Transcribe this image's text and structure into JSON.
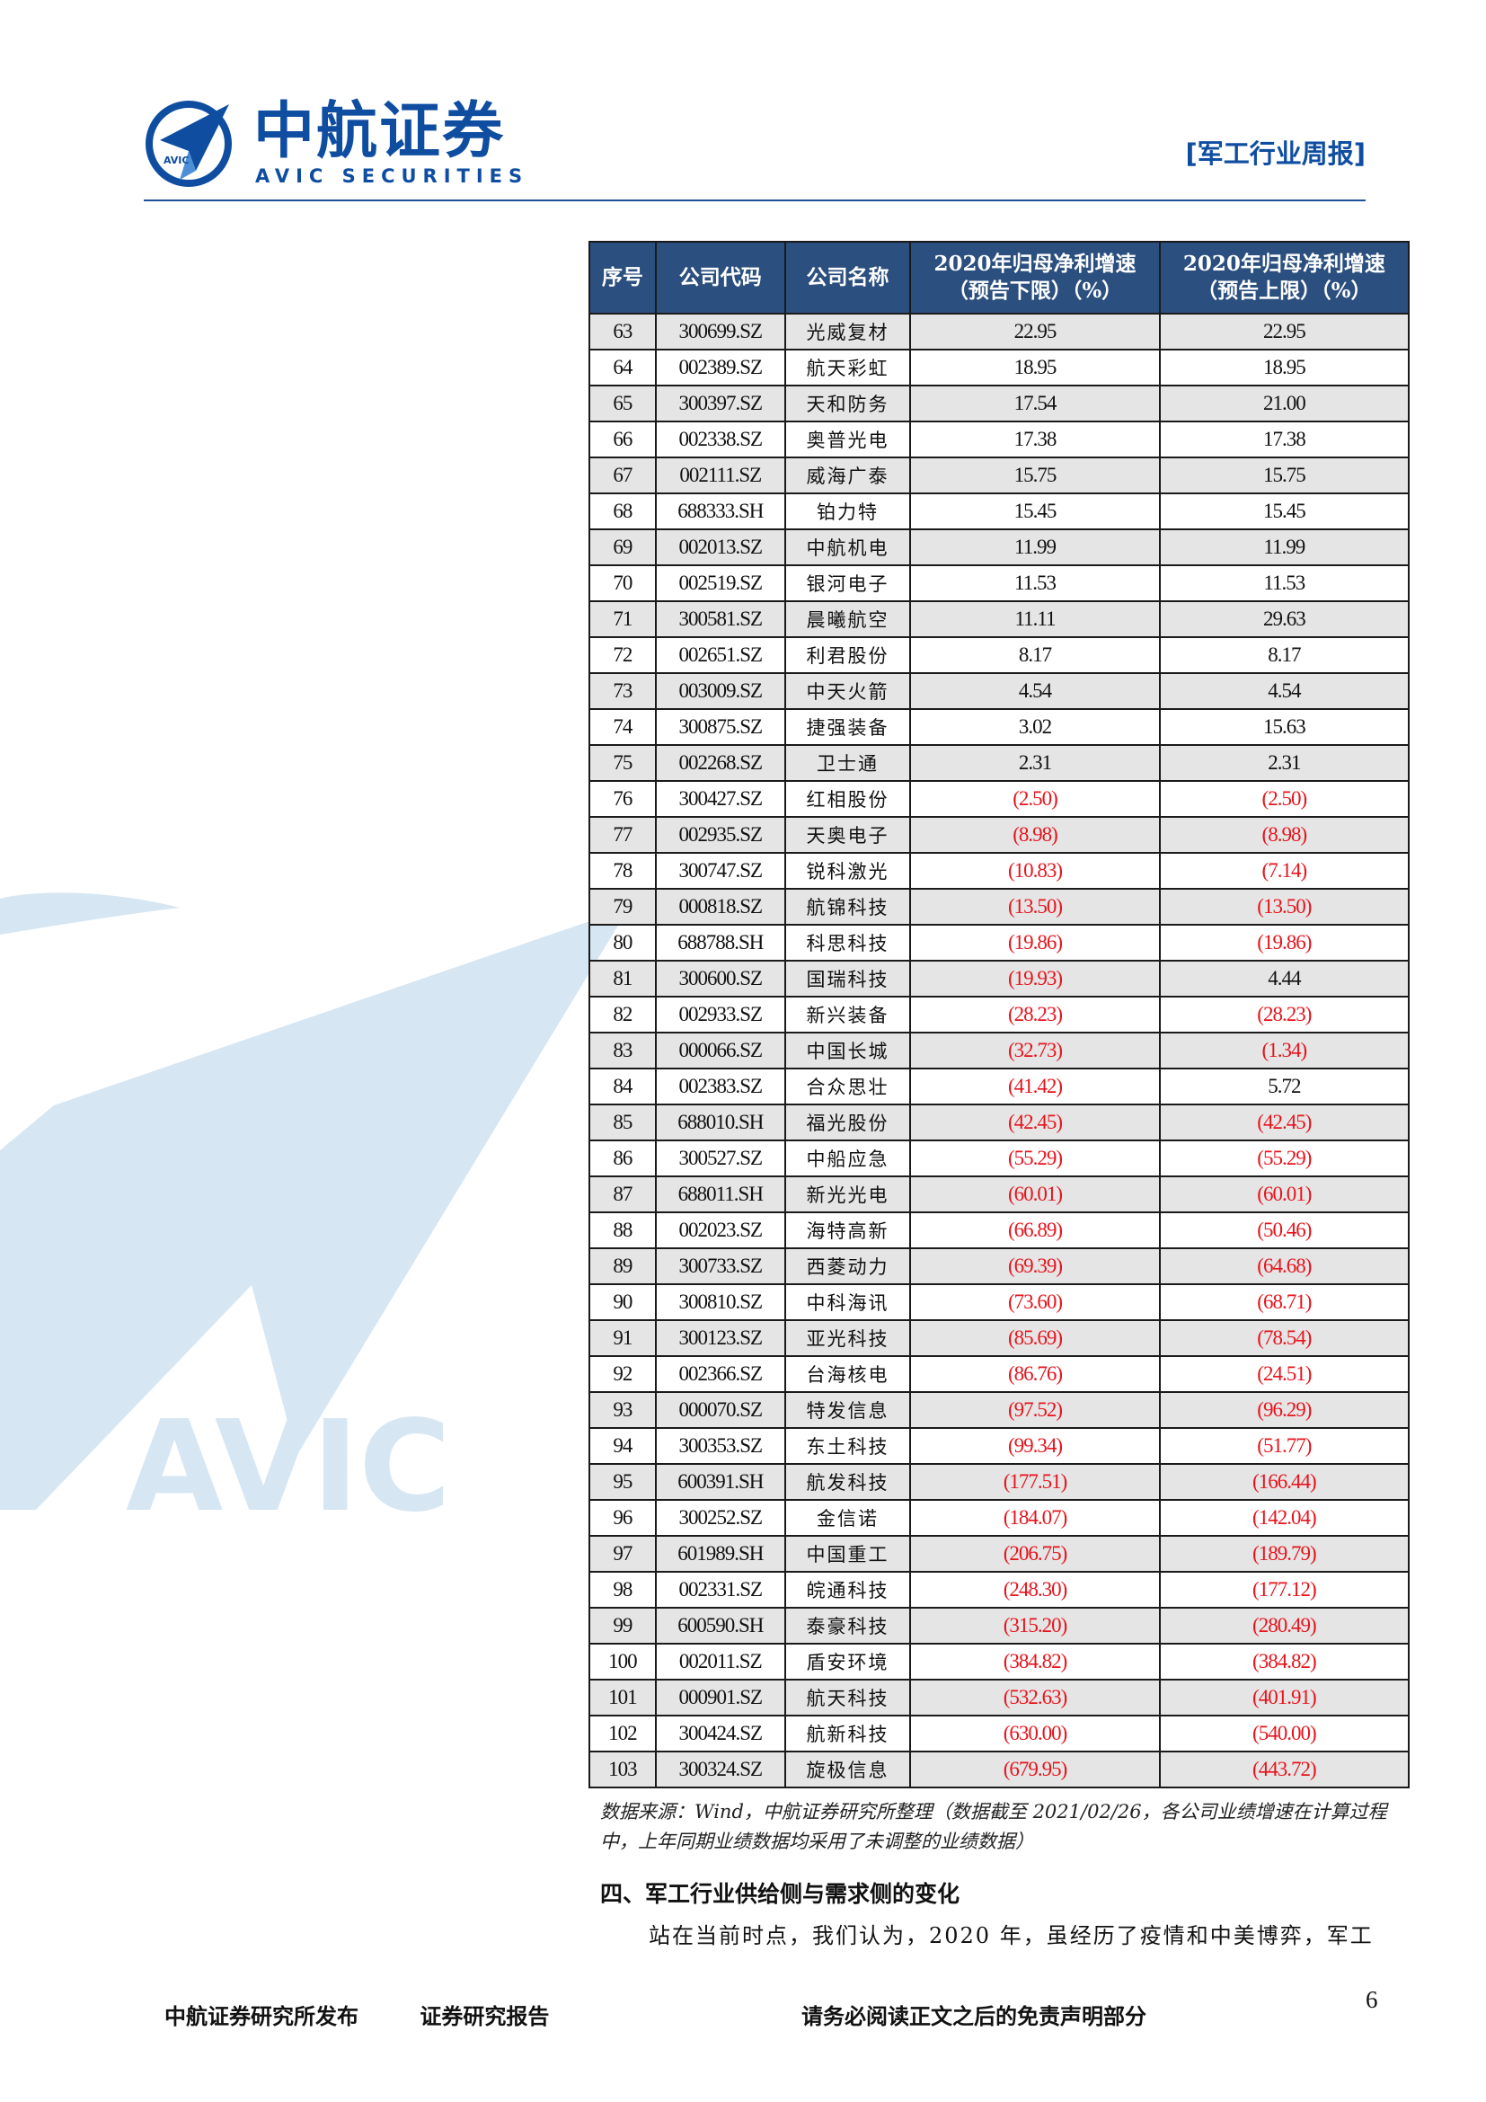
{
  "header": {
    "logo_cn": "中航证券",
    "logo_en": "AVIC SECURITIES",
    "logo_badge": "AVIC",
    "report_tag": "[军工行业周报]"
  },
  "watermark_text": "AVIC",
  "table": {
    "columns": [
      "序号",
      "公司代码",
      "公司名称",
      "2020年归母净利增速（预告下限）（%）",
      "2020年归母净利增速（预告上限）（%）"
    ],
    "rows": [
      [
        "63",
        "300699.SZ",
        "光威复材",
        "22.95",
        "22.95"
      ],
      [
        "64",
        "002389.SZ",
        "航天彩虹",
        "18.95",
        "18.95"
      ],
      [
        "65",
        "300397.SZ",
        "天和防务",
        "17.54",
        "21.00"
      ],
      [
        "66",
        "002338.SZ",
        "奥普光电",
        "17.38",
        "17.38"
      ],
      [
        "67",
        "002111.SZ",
        "威海广泰",
        "15.75",
        "15.75"
      ],
      [
        "68",
        "688333.SH",
        "铂力特",
        "15.45",
        "15.45"
      ],
      [
        "69",
        "002013.SZ",
        "中航机电",
        "11.99",
        "11.99"
      ],
      [
        "70",
        "002519.SZ",
        "银河电子",
        "11.53",
        "11.53"
      ],
      [
        "71",
        "300581.SZ",
        "晨曦航空",
        "11.11",
        "29.63"
      ],
      [
        "72",
        "002651.SZ",
        "利君股份",
        "8.17",
        "8.17"
      ],
      [
        "73",
        "003009.SZ",
        "中天火箭",
        "4.54",
        "4.54"
      ],
      [
        "74",
        "300875.SZ",
        "捷强装备",
        "3.02",
        "15.63"
      ],
      [
        "75",
        "002268.SZ",
        "卫士通",
        "2.31",
        "2.31"
      ],
      [
        "76",
        "300427.SZ",
        "红相股份",
        "(2.50)",
        "(2.50)"
      ],
      [
        "77",
        "002935.SZ",
        "天奥电子",
        "(8.98)",
        "(8.98)"
      ],
      [
        "78",
        "300747.SZ",
        "锐科激光",
        "(10.83)",
        "(7.14)"
      ],
      [
        "79",
        "000818.SZ",
        "航锦科技",
        "(13.50)",
        "(13.50)"
      ],
      [
        "80",
        "688788.SH",
        "科思科技",
        "(19.86)",
        "(19.86)"
      ],
      [
        "81",
        "300600.SZ",
        "国瑞科技",
        "(19.93)",
        "4.44"
      ],
      [
        "82",
        "002933.SZ",
        "新兴装备",
        "(28.23)",
        "(28.23)"
      ],
      [
        "83",
        "000066.SZ",
        "中国长城",
        "(32.73)",
        "(1.34)"
      ],
      [
        "84",
        "002383.SZ",
        "合众思壮",
        "(41.42)",
        "5.72"
      ],
      [
        "85",
        "688010.SH",
        "福光股份",
        "(42.45)",
        "(42.45)"
      ],
      [
        "86",
        "300527.SZ",
        "中船应急",
        "(55.29)",
        "(55.29)"
      ],
      [
        "87",
        "688011.SH",
        "新光光电",
        "(60.01)",
        "(60.01)"
      ],
      [
        "88",
        "002023.SZ",
        "海特高新",
        "(66.89)",
        "(50.46)"
      ],
      [
        "89",
        "300733.SZ",
        "西菱动力",
        "(69.39)",
        "(64.68)"
      ],
      [
        "90",
        "300810.SZ",
        "中科海讯",
        "(73.60)",
        "(68.71)"
      ],
      [
        "91",
        "300123.SZ",
        "亚光科技",
        "(85.69)",
        "(78.54)"
      ],
      [
        "92",
        "002366.SZ",
        "台海核电",
        "(86.76)",
        "(24.51)"
      ],
      [
        "93",
        "000070.SZ",
        "特发信息",
        "(97.52)",
        "(96.29)"
      ],
      [
        "94",
        "300353.SZ",
        "东土科技",
        "(99.34)",
        "(51.77)"
      ],
      [
        "95",
        "600391.SH",
        "航发科技",
        "(177.51)",
        "(166.44)"
      ],
      [
        "96",
        "300252.SZ",
        "金信诺",
        "(184.07)",
        "(142.04)"
      ],
      [
        "97",
        "601989.SH",
        "中国重工",
        "(206.75)",
        "(189.79)"
      ],
      [
        "98",
        "002331.SZ",
        "皖通科技",
        "(248.30)",
        "(177.12)"
      ],
      [
        "99",
        "600590.SH",
        "泰豪科技",
        "(315.20)",
        "(280.49)"
      ],
      [
        "100",
        "002011.SZ",
        "盾安环境",
        "(384.82)",
        "(384.82)"
      ],
      [
        "101",
        "000901.SZ",
        "航天科技",
        "(532.63)",
        "(401.91)"
      ],
      [
        "102",
        "300424.SZ",
        "航新科技",
        "(630.00)",
        "(540.00)"
      ],
      [
        "103",
        "300324.SZ",
        "旋极信息",
        "(679.95)",
        "(443.72)"
      ]
    ]
  },
  "note": "数据来源：Wind，中航证券研究所整理（数据截至 2021/02/26，各公司业绩增速在计算过程中，上年同期业绩数据均采用了未调整的业绩数据）",
  "section_heading": "四、军工行业供给侧与需求侧的变化",
  "paragraph": "站在当前时点，我们认为，2020 年，虽经历了疫情和中美博弈，军工",
  "footer": {
    "publisher": "中航证券研究所发布",
    "doc_type": "证券研究报告",
    "disclaimer": "请务必阅读正文之后的免责声明部分",
    "page": "6"
  },
  "colors": {
    "brand_blue": "#0f4da1",
    "table_header": "#2b4f7e",
    "negative_red": "#e8131c",
    "watermark": "#d6e6f3"
  }
}
